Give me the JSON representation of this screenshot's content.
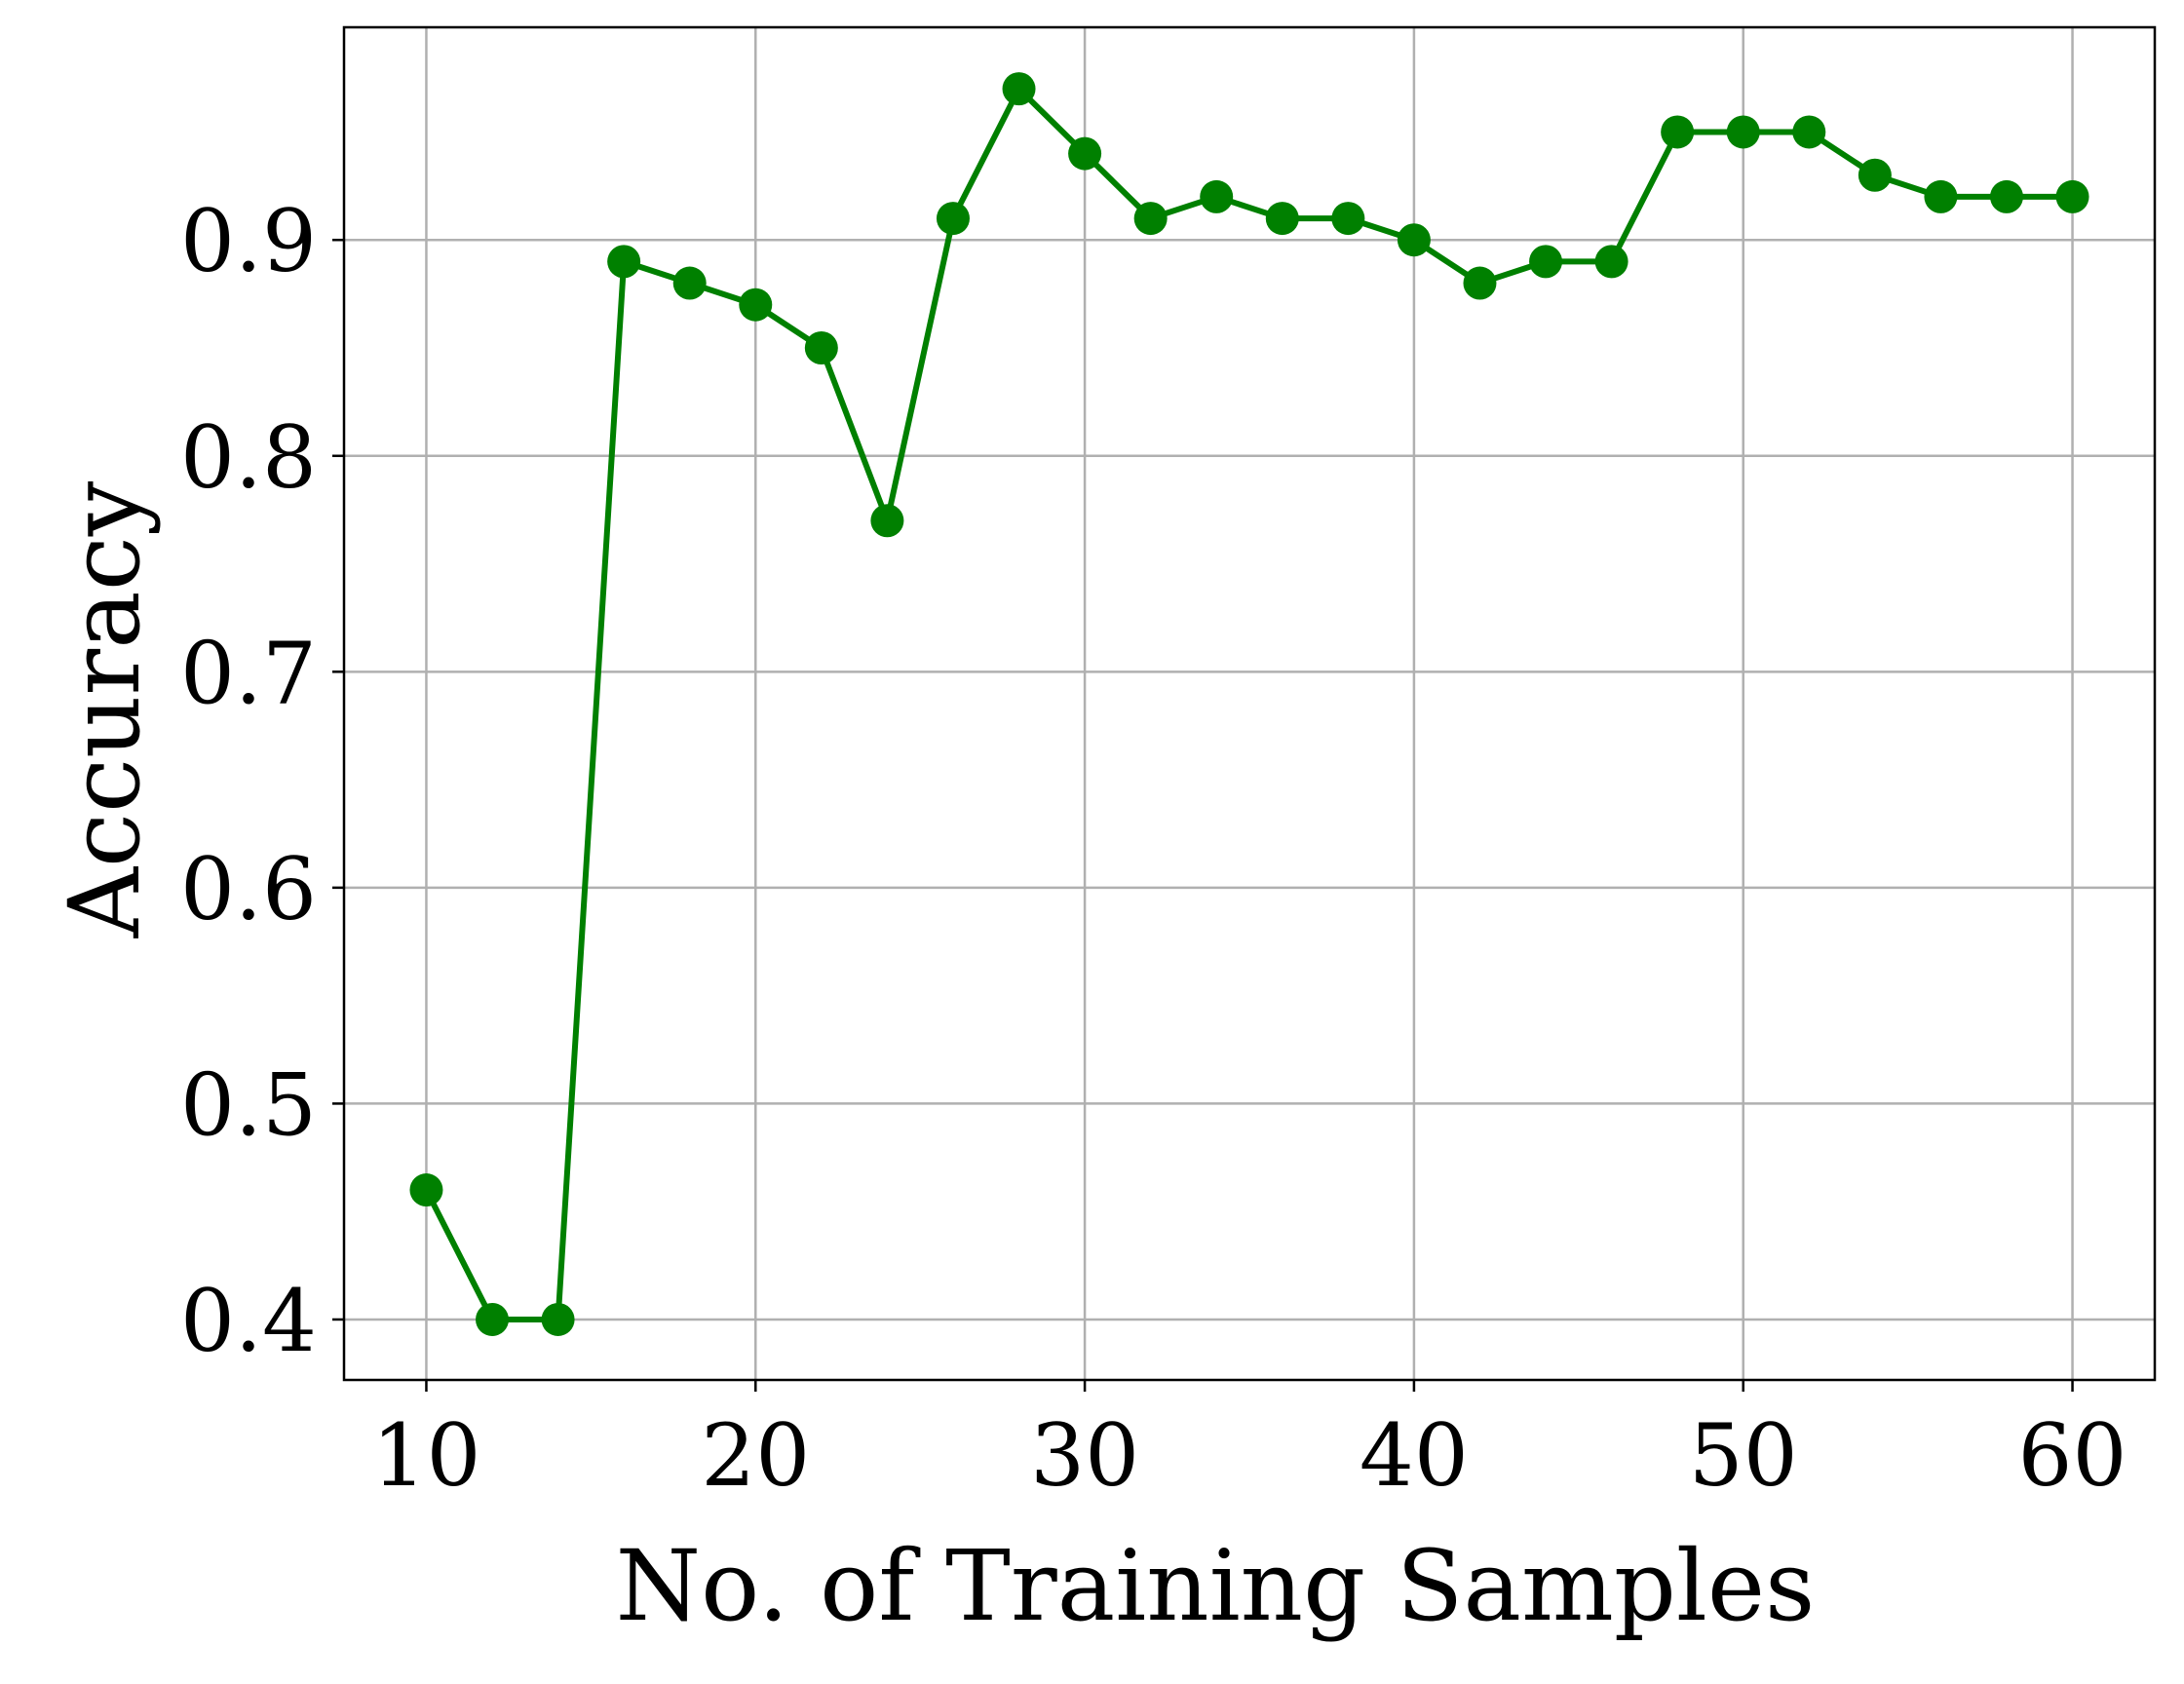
{
  "chart_data": {
    "type": "line",
    "title": "",
    "xlabel": "No. of Training Samples",
    "ylabel": "Accuracy",
    "xlim": [
      7.5,
      62.5
    ],
    "ylim": [
      0.372,
      0.9985
    ],
    "xticks": [
      10,
      20,
      30,
      40,
      50,
      60
    ],
    "yticks": [
      0.4,
      0.5,
      0.6,
      0.7,
      0.8,
      0.9
    ],
    "grid": true,
    "legend": "none",
    "color": "#008000",
    "x": [
      10,
      12,
      14,
      16,
      18,
      20,
      22,
      24,
      26,
      28,
      30,
      32,
      34,
      36,
      38,
      40,
      42,
      44,
      46,
      48,
      50,
      52,
      54,
      56,
      58,
      60
    ],
    "series": [
      {
        "values": [
          0.46,
          0.4,
          0.4,
          0.89,
          0.88,
          0.87,
          0.85,
          0.77,
          0.91,
          0.97,
          0.94,
          0.91,
          0.92,
          0.91,
          0.91,
          0.9,
          0.88,
          0.89,
          0.89,
          0.95,
          0.95,
          0.95,
          0.93,
          0.92,
          0.92,
          0.92
        ]
      }
    ]
  }
}
